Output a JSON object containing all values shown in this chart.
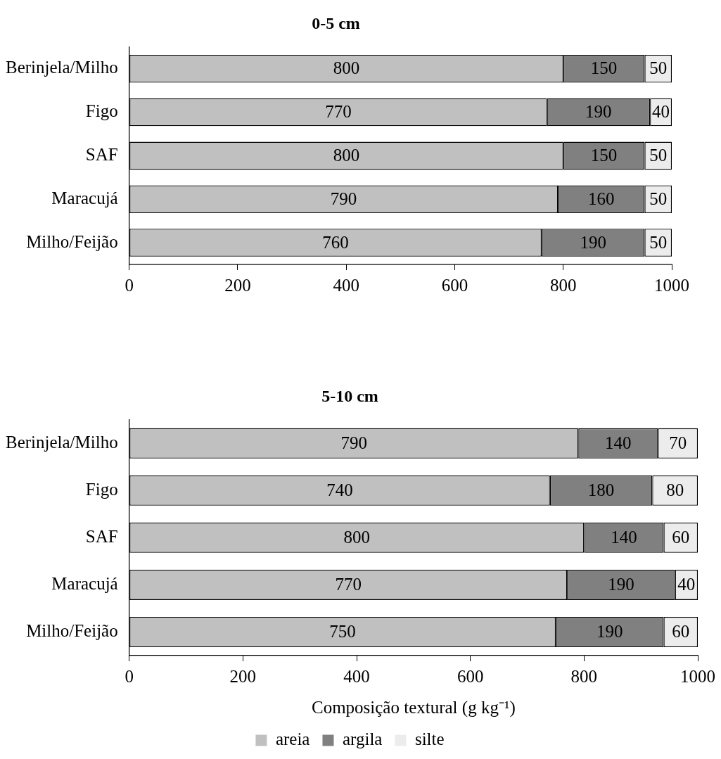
{
  "chart_data": [
    {
      "type": "bar",
      "title": "0-5 cm",
      "orientation": "horizontal",
      "stacked": true,
      "data_labels": true,
      "legend": false,
      "grid": false,
      "categories": [
        "Berinjela/Milho",
        "Figo",
        "SAF",
        "Maracujá",
        "Milho/Feijão"
      ],
      "series": [
        {
          "color": "#c0c0c0",
          "values": [
            800,
            770,
            800,
            790,
            760
          ]
        },
        {
          "color": "#808080",
          "values": [
            150,
            190,
            150,
            160,
            190
          ]
        },
        {
          "color": "#ececec",
          "values": [
            50,
            40,
            50,
            50,
            50
          ]
        }
      ],
      "xlim": [
        0,
        1000
      ],
      "xticks": [
        0,
        200,
        400,
        600,
        800,
        1000
      ]
    },
    {
      "type": "bar",
      "title": "5-10 cm",
      "xlabel": "Composição textural (g kg⁻¹)",
      "orientation": "horizontal",
      "stacked": true,
      "data_labels": true,
      "legend": "bottom",
      "grid": false,
      "categories": [
        "Berinjela/Milho",
        "Figo",
        "SAF",
        "Maracujá",
        "Milho/Feijão"
      ],
      "series": [
        {
          "name": "areia",
          "color": "#c0c0c0",
          "values": [
            790,
            740,
            800,
            770,
            750
          ]
        },
        {
          "name": "argila",
          "color": "#808080",
          "values": [
            140,
            180,
            140,
            190,
            190
          ]
        },
        {
          "name": "silte",
          "color": "#ececec",
          "values": [
            70,
            80,
            60,
            40,
            60
          ]
        }
      ],
      "xlim": [
        0,
        1000
      ],
      "xticks": [
        0,
        200,
        400,
        600,
        800,
        1000
      ]
    }
  ]
}
